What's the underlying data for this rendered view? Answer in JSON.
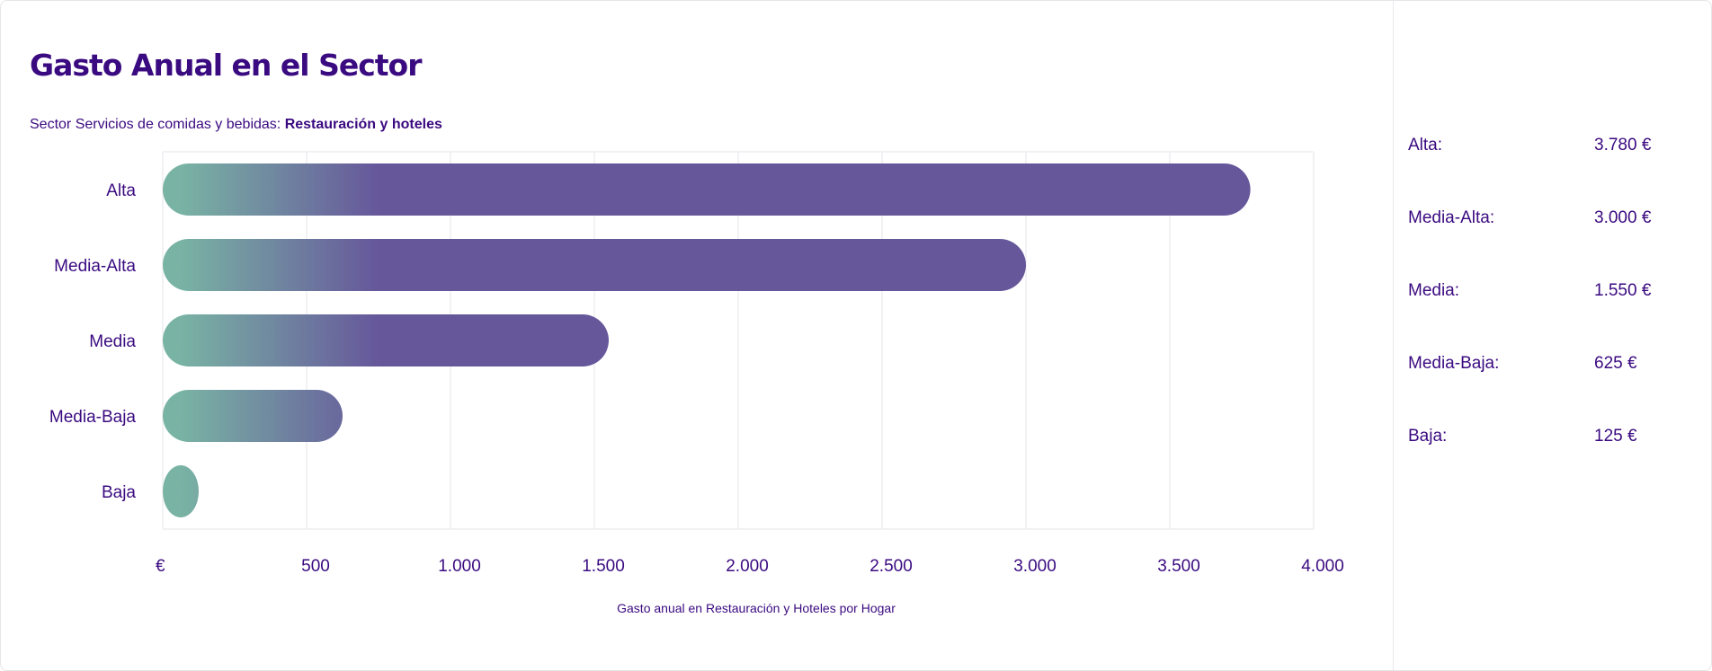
{
  "title": "Gasto Anual en el Sector",
  "subtitle": {
    "prefix": "Sector Servicios de comidas y bebidas: ",
    "highlight": "Restauración y hoteles"
  },
  "chart_data": {
    "type": "bar",
    "orientation": "horizontal",
    "title": "Gasto Anual en el Sector",
    "categories": [
      "Alta",
      "Media-Alta",
      "Media",
      "Media-Baja",
      "Baja"
    ],
    "values": [
      3780,
      3000,
      1550,
      625,
      125
    ],
    "x_ticks": [
      "€",
      "500",
      "1.000",
      "1.500",
      "2.000",
      "2.500",
      "3.000",
      "3.500",
      "4.000"
    ],
    "xlim": [
      0,
      4000
    ],
    "xlabel": "Gasto anual en Restauración y Hoteles por Hogar",
    "ylabel": "",
    "grid": true,
    "colors": {
      "gradient_start": "#79b3a4",
      "gradient_end": "#66579b"
    }
  },
  "legend": [
    {
      "label": "Alta:",
      "value": "3.780 €"
    },
    {
      "label": "Media-Alta:",
      "value": "3.000 €"
    },
    {
      "label": "Media:",
      "value": "1.550 €"
    },
    {
      "label": "Media-Baja:",
      "value": "625 €"
    },
    {
      "label": "Baja:",
      "value": "125 €"
    }
  ],
  "colors": {
    "text": "#3a0a80",
    "grid": "#eeeeF2"
  }
}
